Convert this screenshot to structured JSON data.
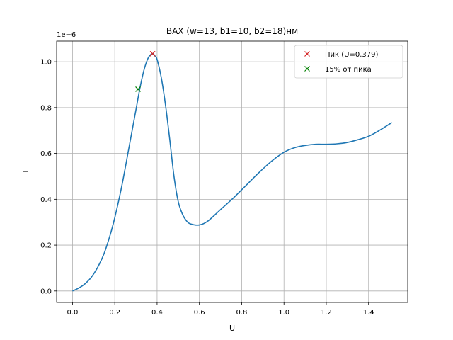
{
  "chart_data": {
    "type": "line",
    "title": "ВАХ (w=13, b1=10, b2=18)нм",
    "xlabel": "U",
    "ylabel": "I",
    "y_offset_text": "1e−6",
    "xlim": [
      -0.075,
      1.585
    ],
    "ylim": [
      -5e-08,
      1.09e-06
    ],
    "x_ticks": [
      0.0,
      0.2,
      0.4,
      0.6,
      0.8,
      1.0,
      1.2,
      1.4
    ],
    "x_tick_labels": [
      "0.0",
      "0.2",
      "0.4",
      "0.6",
      "0.8",
      "1.0",
      "1.2",
      "1.4"
    ],
    "y_ticks": [
      0.0,
      2e-07,
      4e-07,
      6e-07,
      8e-07,
      1e-06
    ],
    "y_tick_labels": [
      "0.0",
      "0.2",
      "0.4",
      "0.6",
      "0.8",
      "1.0"
    ],
    "grid": true,
    "legend_position": "top-right",
    "series": [
      {
        "color": "#1f77b4",
        "x": [
          0.0,
          0.03,
          0.06,
          0.09,
          0.12,
          0.15,
          0.18,
          0.2,
          0.22,
          0.24,
          0.26,
          0.28,
          0.3,
          0.32,
          0.34,
          0.36,
          0.379,
          0.39,
          0.4,
          0.42,
          0.44,
          0.46,
          0.48,
          0.5,
          0.52,
          0.54,
          0.56,
          0.6,
          0.64,
          0.7,
          0.76,
          0.82,
          0.88,
          0.94,
          1.0,
          1.05,
          1.1,
          1.15,
          1.2,
          1.25,
          1.3,
          1.35,
          1.4,
          1.45,
          1.51
        ],
        "y": [
          0.0,
          1.3e-08,
          3.2e-08,
          6.1e-08,
          1.05e-07,
          1.65e-07,
          2.5e-07,
          3.2e-07,
          4e-07,
          4.9e-07,
          5.9e-07,
          6.9e-07,
          7.9e-07,
          8.9e-07,
          9.7e-07,
          1.02e-06,
          1.035e-06,
          1.025e-06,
          1.01e-06,
          9.3e-07,
          8.1e-07,
          6.6e-07,
          5e-07,
          3.9e-07,
          3.35e-07,
          3.05e-07,
          2.92e-07,
          2.88e-07,
          3.05e-07,
          3.55e-07,
          4.05e-07,
          4.6e-07,
          5.15e-07,
          5.65e-07,
          6.05e-07,
          6.25e-07,
          6.35e-07,
          6.4e-07,
          6.4e-07,
          6.42e-07,
          6.48e-07,
          6.6e-07,
          6.75e-07,
          7e-07,
          7.35e-07
        ]
      }
    ],
    "markers": [
      {
        "name": "Пик (U=0.379)",
        "x": 0.379,
        "y": 1.035e-06,
        "color": "#d62728",
        "symbol": "x"
      },
      {
        "name": "15% от пика",
        "x": 0.31,
        "y": 8.8e-07,
        "color": "#008000",
        "symbol": "x"
      }
    ]
  }
}
